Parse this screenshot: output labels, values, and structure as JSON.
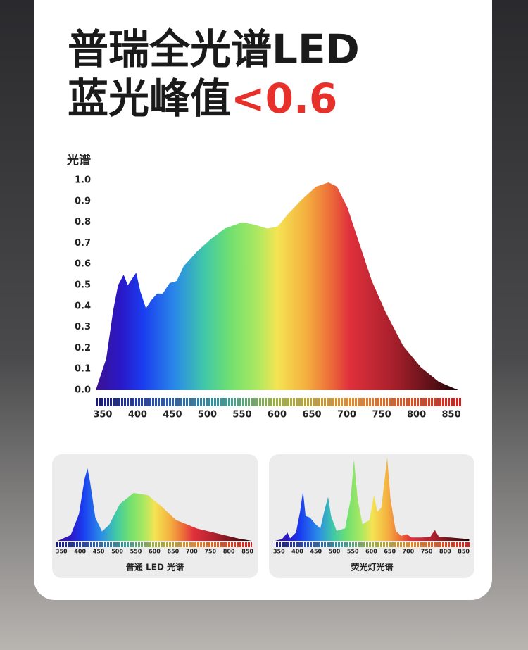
{
  "header": {
    "line1": "普瑞全光谱LED",
    "line2": "蓝光峰值",
    "highlight": "<0.6"
  },
  "chart_data": [
    {
      "type": "area",
      "ylabel": "光谱",
      "x": [
        340,
        355,
        365,
        372,
        380,
        386,
        392,
        398,
        404,
        412,
        420,
        428,
        436,
        446,
        456,
        466,
        485,
        505,
        525,
        550,
        566,
        586,
        601,
        616,
        636,
        656,
        674,
        686,
        701,
        716,
        736,
        756,
        781,
        806,
        832,
        860
      ],
      "values": [
        0,
        0.15,
        0.38,
        0.5,
        0.55,
        0.5,
        0.53,
        0.56,
        0.47,
        0.39,
        0.43,
        0.46,
        0.46,
        0.51,
        0.52,
        0.59,
        0.66,
        0.72,
        0.77,
        0.8,
        0.79,
        0.77,
        0.78,
        0.84,
        0.91,
        0.97,
        0.99,
        0.97,
        0.87,
        0.72,
        0.52,
        0.37,
        0.21,
        0.11,
        0.04,
        0
      ],
      "xlim": [
        340,
        860
      ],
      "ylim": [
        0,
        1
      ],
      "yticks": [
        {
          "value": 0,
          "label": "0.0"
        },
        0.1,
        0.2,
        0.3,
        0.4,
        0.5,
        0.6,
        0.7,
        0.8,
        0.9,
        {
          "value": 1,
          "label": "1.0"
        }
      ],
      "xticks": [
        350,
        400,
        450,
        500,
        550,
        600,
        650,
        700,
        750,
        800,
        850
      ]
    },
    {
      "type": "area",
      "title": "普通 LED 光谱",
      "x": [
        340,
        375,
        397,
        412,
        420,
        427,
        441,
        459,
        478,
        507,
        544,
        582,
        620,
        657,
        714,
        771,
        827,
        861
      ],
      "values": [
        0,
        0.08,
        0.37,
        0.85,
        1,
        0.81,
        0.32,
        0.13,
        0.22,
        0.51,
        0.66,
        0.63,
        0.47,
        0.29,
        0.17,
        0.1,
        0.03,
        0
      ],
      "xlim": [
        340,
        862
      ],
      "ylim": [
        0,
        1
      ],
      "xticks": [
        350,
        400,
        450,
        500,
        550,
        600,
        650,
        700,
        750,
        800,
        850
      ]
    },
    {
      "type": "area",
      "title": "荧光灯光谱",
      "x": [
        339,
        358,
        373,
        380,
        396,
        407,
        415,
        422,
        434,
        449,
        462,
        475,
        483,
        491,
        506,
        529,
        544,
        553,
        563,
        576,
        595,
        607,
        616,
        627,
        643,
        652,
        666,
        681,
        696,
        709,
        738,
        760,
        772,
        783,
        814,
        865
      ],
      "values": [
        0,
        0.02,
        0.1,
        0.03,
        0.1,
        0.35,
        0.6,
        0.3,
        0.28,
        0.2,
        0.15,
        0.4,
        0.53,
        0.3,
        0.12,
        0.15,
        0.5,
        0.98,
        0.5,
        0.2,
        0.25,
        0.55,
        0.35,
        0.4,
        1,
        0.5,
        0.12,
        0.06,
        0.08,
        0.04,
        0.04,
        0.05,
        0.13,
        0.05,
        0.04,
        0.02
      ],
      "xlim": [
        338,
        866
      ],
      "ylim": [
        0,
        1
      ],
      "xticks": [
        350,
        400,
        450,
        500,
        550,
        600,
        650,
        700,
        750,
        800,
        850
      ]
    }
  ]
}
